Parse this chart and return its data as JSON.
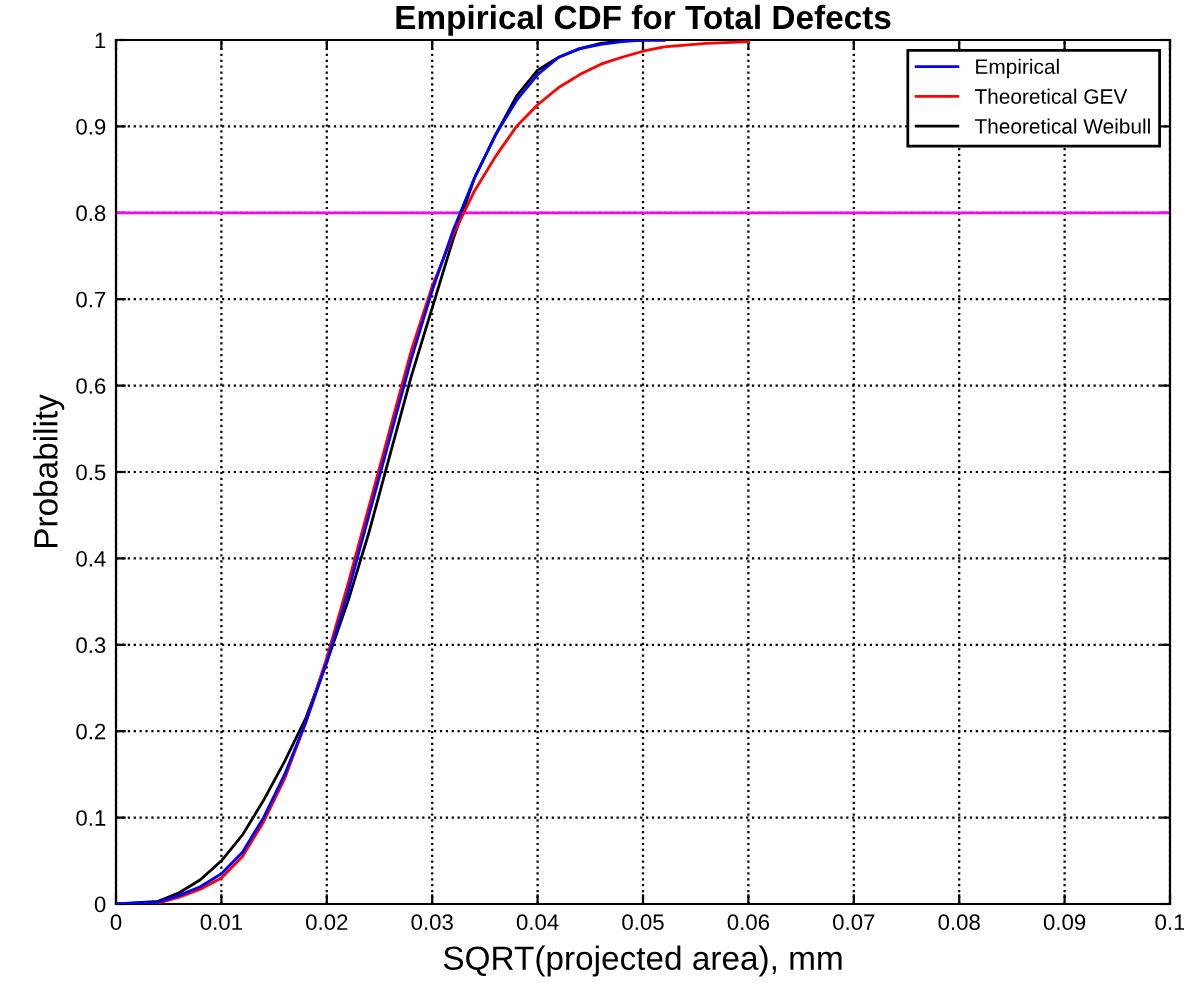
{
  "chart_data": {
    "type": "line",
    "title": "Empirical CDF for Total Defects",
    "xlabel": "SQRT(projected area), mm",
    "ylabel": "Probability",
    "x": [
      0,
      0.004,
      0.006,
      0.008,
      0.01,
      0.012,
      0.014,
      0.016,
      0.018,
      0.02,
      0.022,
      0.024,
      0.026,
      0.028,
      0.03,
      0.032,
      0.034,
      0.036,
      0.038,
      0.04,
      0.042,
      0.044,
      0.046,
      0.048,
      0.05,
      0.052
    ],
    "series": [
      {
        "name": "Empirical",
        "color": "#0000ff",
        "values": [
          0,
          0.002,
          0.01,
          0.02,
          0.035,
          0.06,
          0.1,
          0.15,
          0.21,
          0.28,
          0.36,
          0.45,
          0.54,
          0.63,
          0.71,
          0.78,
          0.84,
          0.89,
          0.93,
          0.96,
          0.98,
          0.99,
          0.995,
          0.998,
          1,
          1
        ]
      },
      {
        "name": "Theoretical GEV",
        "color": "#ff0000",
        "x": [
          0,
          0.004,
          0.006,
          0.008,
          0.01,
          0.012,
          0.014,
          0.016,
          0.018,
          0.02,
          0.022,
          0.024,
          0.026,
          0.028,
          0.03,
          0.032,
          0.034,
          0.036,
          0.038,
          0.04,
          0.042,
          0.044,
          0.046,
          0.048,
          0.05,
          0.052,
          0.056,
          0.06
        ],
        "values": [
          0,
          0.001,
          0.008,
          0.017,
          0.03,
          0.055,
          0.095,
          0.145,
          0.21,
          0.285,
          0.37,
          0.46,
          0.55,
          0.64,
          0.715,
          0.775,
          0.825,
          0.865,
          0.9,
          0.925,
          0.945,
          0.96,
          0.972,
          0.98,
          0.987,
          0.992,
          0.996,
          0.998
        ]
      },
      {
        "name": "Theoretical Weibull",
        "color": "#000000",
        "values": [
          0,
          0.003,
          0.013,
          0.028,
          0.05,
          0.08,
          0.12,
          0.165,
          0.215,
          0.28,
          0.35,
          0.43,
          0.52,
          0.61,
          0.69,
          0.77,
          0.84,
          0.89,
          0.935,
          0.965,
          0.98,
          0.99,
          0.996,
          0.999,
          1,
          1
        ]
      }
    ],
    "xlim": [
      0,
      0.1
    ],
    "xticks": [
      0,
      0.01,
      0.02,
      0.03,
      0.04,
      0.05,
      0.06,
      0.07,
      0.08,
      0.09,
      0.1
    ],
    "ylim": [
      0,
      1
    ],
    "yticks": [
      0,
      0.1,
      0.2,
      0.3,
      0.4,
      0.5,
      0.6,
      0.7,
      0.8,
      0.9,
      1
    ],
    "ref_lines": [
      {
        "axis": "y",
        "value": 0.8,
        "color": "#ff00ff"
      }
    ],
    "grid": true,
    "legend": "top right",
    "line_style": "solid",
    "marker": "none"
  }
}
